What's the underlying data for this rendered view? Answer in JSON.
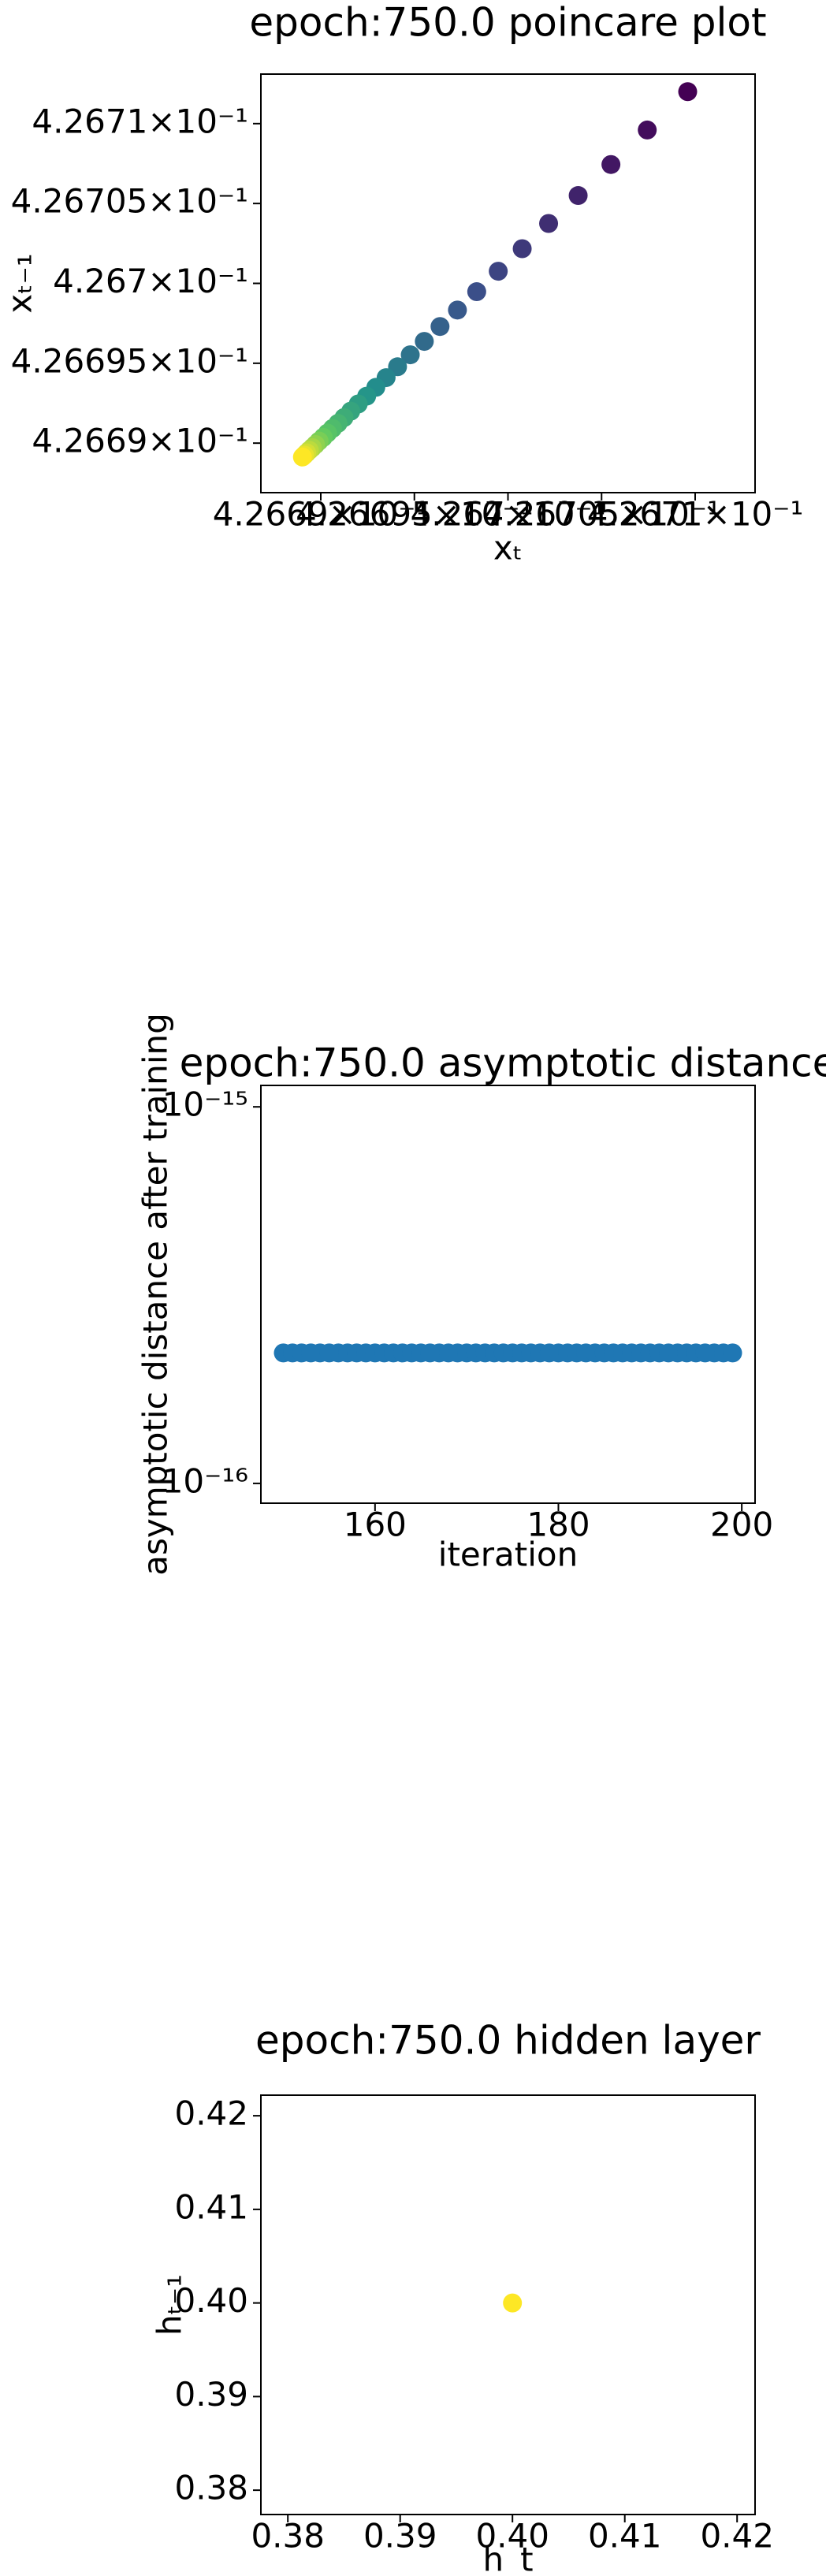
{
  "chart_data": [
    {
      "type": "scatter",
      "title": "epoch:750.0 poincare plot",
      "xlabel": "xₜ",
      "ylabel": "xₜ₋₁",
      "xlog": true,
      "ylog": true,
      "colormap": "viridis",
      "x": [
        0.4267096,
        0.42670744,
        0.4267055,
        0.42670375,
        0.42670217,
        0.42670076,
        0.42669948,
        0.42669833,
        0.4266973,
        0.42669637,
        0.42669553,
        0.42669478,
        0.4266941,
        0.42669349,
        0.42669294,
        0.42669245,
        0.426692,
        0.4266916,
        0.42669124,
        0.42669092,
        0.42669063,
        0.42669036,
        0.42669013,
        0.42668991,
        0.42668972,
        0.42668955,
        0.42668939,
        0.42668925,
        0.42668913,
        0.42668902
      ],
      "values": [
        0.426712,
        0.4267096,
        0.42670744,
        0.4267055,
        0.42670375,
        0.42670217,
        0.42670076,
        0.42669948,
        0.42669833,
        0.4266973,
        0.42669637,
        0.42669553,
        0.42669478,
        0.4266941,
        0.42669349,
        0.42669294,
        0.42669245,
        0.426692,
        0.4266916,
        0.42669124,
        0.42669092,
        0.42669063,
        0.42669036,
        0.42669013,
        0.42668991,
        0.42668972,
        0.42668955,
        0.42668939,
        0.42668925,
        0.42668913
      ],
      "xlim": [
        0.4266868,
        0.4267132
      ],
      "ylim": [
        0.4266869,
        0.4267131
      ],
      "xticks": [
        {
          "value": 0.42669,
          "label": "4.2669×10⁻¹"
        },
        {
          "value": 0.426695,
          "label": "4.26695×10⁻¹"
        },
        {
          "value": 0.4267,
          "label": "4.267×10⁻¹"
        },
        {
          "value": 0.426705,
          "label": "4.26705×10⁻¹"
        },
        {
          "value": 0.42671,
          "label": "4.2671×10⁻¹"
        }
      ],
      "yticks": [
        {
          "value": 0.42669,
          "label": "4.2669×10⁻¹"
        },
        {
          "value": 0.426695,
          "label": "4.26695×10⁻¹"
        },
        {
          "value": 0.4267,
          "label": "4.267×10⁻¹"
        },
        {
          "value": 0.426705,
          "label": "4.26705×10⁻¹"
        },
        {
          "value": 0.42671,
          "label": "4.2671×10⁻¹"
        }
      ]
    },
    {
      "type": "scatter",
      "title": "epoch:750.0 asymptotic distance",
      "xlabel": "iteration",
      "ylabel": "asymptotic distance after training",
      "ylog": true,
      "color": "#1f77b4",
      "x": [
        150,
        151,
        152,
        153,
        154,
        155,
        156,
        157,
        158,
        159,
        160,
        161,
        162,
        163,
        164,
        165,
        166,
        167,
        168,
        169,
        170,
        171,
        172,
        173,
        174,
        175,
        176,
        177,
        178,
        179,
        180,
        181,
        182,
        183,
        184,
        185,
        186,
        187,
        188,
        189,
        190,
        191,
        192,
        193,
        194,
        195,
        196,
        197,
        198,
        199
      ],
      "values": [
        2.220446e-16,
        2.220446e-16,
        2.220446e-16,
        2.220446e-16,
        2.220446e-16,
        2.220446e-16,
        2.220446e-16,
        2.220446e-16,
        2.220446e-16,
        2.220446e-16,
        2.220446e-16,
        2.220446e-16,
        2.220446e-16,
        2.220446e-16,
        2.220446e-16,
        2.220446e-16,
        2.220446e-16,
        2.220446e-16,
        2.220446e-16,
        2.220446e-16,
        2.220446e-16,
        2.220446e-16,
        2.220446e-16,
        2.220446e-16,
        2.220446e-16,
        2.220446e-16,
        2.220446e-16,
        2.220446e-16,
        2.220446e-16,
        2.220446e-16,
        2.220446e-16,
        2.220446e-16,
        2.220446e-16,
        2.220446e-16,
        2.220446e-16,
        2.220446e-16,
        2.220446e-16,
        2.220446e-16,
        2.220446e-16,
        2.220446e-16,
        2.220446e-16,
        2.220446e-16,
        2.220446e-16,
        2.220446e-16,
        2.220446e-16,
        2.220446e-16,
        2.220446e-16,
        2.220446e-16,
        2.220446e-16,
        2.220446e-16
      ],
      "xlim": [
        147.55,
        201.45
      ],
      "ylim": [
        8.86e-17,
        1.14e-15
      ],
      "xticks": [
        160,
        180,
        200
      ],
      "yticks": [
        {
          "value": 1e-15,
          "label": "10⁻¹⁵"
        },
        {
          "value": 1e-16,
          "label": "10⁻¹⁶"
        }
      ]
    },
    {
      "type": "scatter",
      "title": "epoch:750.0 hidden layer",
      "xlabel": "h_t",
      "ylabel": "hₜ₋₁",
      "color": "#fde725",
      "x": [
        0.4
      ],
      "values": [
        0.4
      ],
      "xlim": [
        0.3776,
        0.4216
      ],
      "ylim": [
        0.3774,
        0.4222
      ],
      "xticks": [
        {
          "value": 0.38,
          "label": "0.38"
        },
        {
          "value": 0.39,
          "label": "0.39"
        },
        {
          "value": 0.4,
          "label": "0.40"
        },
        {
          "value": 0.41,
          "label": "0.41"
        },
        {
          "value": 0.42,
          "label": "0.42"
        }
      ],
      "yticks": [
        {
          "value": 0.38,
          "label": "0.38"
        },
        {
          "value": 0.39,
          "label": "0.39"
        },
        {
          "value": 0.4,
          "label": "0.40"
        },
        {
          "value": 0.41,
          "label": "0.41"
        },
        {
          "value": 0.42,
          "label": "0.42"
        }
      ]
    }
  ]
}
